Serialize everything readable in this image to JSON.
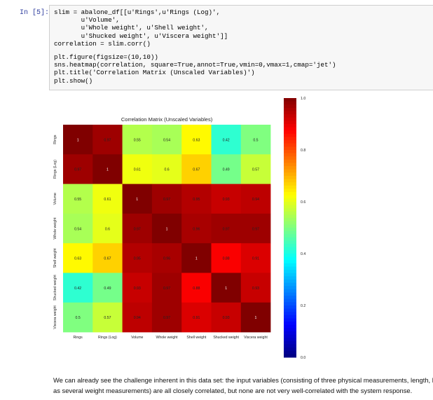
{
  "cell": {
    "prompt": "In [5]:",
    "code_lines": [
      "slim = abalone_df[[u'Rings',u'Rings (Log)',",
      "       u'Volume',",
      "       u'Whole weight', u'Shell weight',",
      "       u'Shucked weight', u'Viscera weight']]",
      "correlation = slim.corr()",
      "",
      "plt.figure(figsize=(10,10))",
      "sns.heatmap(correlation, square=True,annot=True,vmin=0,vmax=1,cmap='jet')",
      "plt.title('Correlation Matrix (Unscaled Variables)')",
      "plt.show()"
    ]
  },
  "chart_data": {
    "type": "heatmap",
    "title": "Correlation Matrix (Unscaled Variables)",
    "colormap": "jet",
    "vmin": 0,
    "vmax": 1,
    "row_labels": [
      "Rings",
      "Rings (Log)",
      "Volume",
      "Whole weight",
      "Shell weight",
      "Shucked weight",
      "Viscera weight"
    ],
    "col_labels": [
      "Rings",
      "Rings (Log)",
      "Volume",
      "Whole weight",
      "Shell weight",
      "Shucked weight",
      "Viscera weight"
    ],
    "values": [
      [
        1,
        0.97,
        0.55,
        0.54,
        0.63,
        0.42,
        0.5
      ],
      [
        0.97,
        1,
        0.61,
        0.6,
        0.67,
        0.49,
        0.57
      ],
      [
        0.55,
        0.61,
        1,
        0.97,
        0.95,
        0.93,
        0.94
      ],
      [
        0.54,
        0.6,
        0.97,
        1,
        0.96,
        0.97,
        0.97
      ],
      [
        0.63,
        0.67,
        0.95,
        0.96,
        1,
        0.88,
        0.91
      ],
      [
        0.42,
        0.49,
        0.93,
        0.97,
        0.88,
        1,
        0.93
      ],
      [
        0.5,
        0.57,
        0.94,
        0.97,
        0.91,
        0.93,
        1
      ]
    ],
    "colorbar_ticks": [
      "1.0",
      "0.8",
      "0.6",
      "0.4",
      "0.2",
      "0.0"
    ]
  },
  "output_text": {
    "line1": "We can already see the challenge inherent in this data set: the input variables (consisting of three physical measurements, length, h",
    "line2": "as several weight measurements) are all closely correlated, but none are not very well-correlated with the system response."
  }
}
